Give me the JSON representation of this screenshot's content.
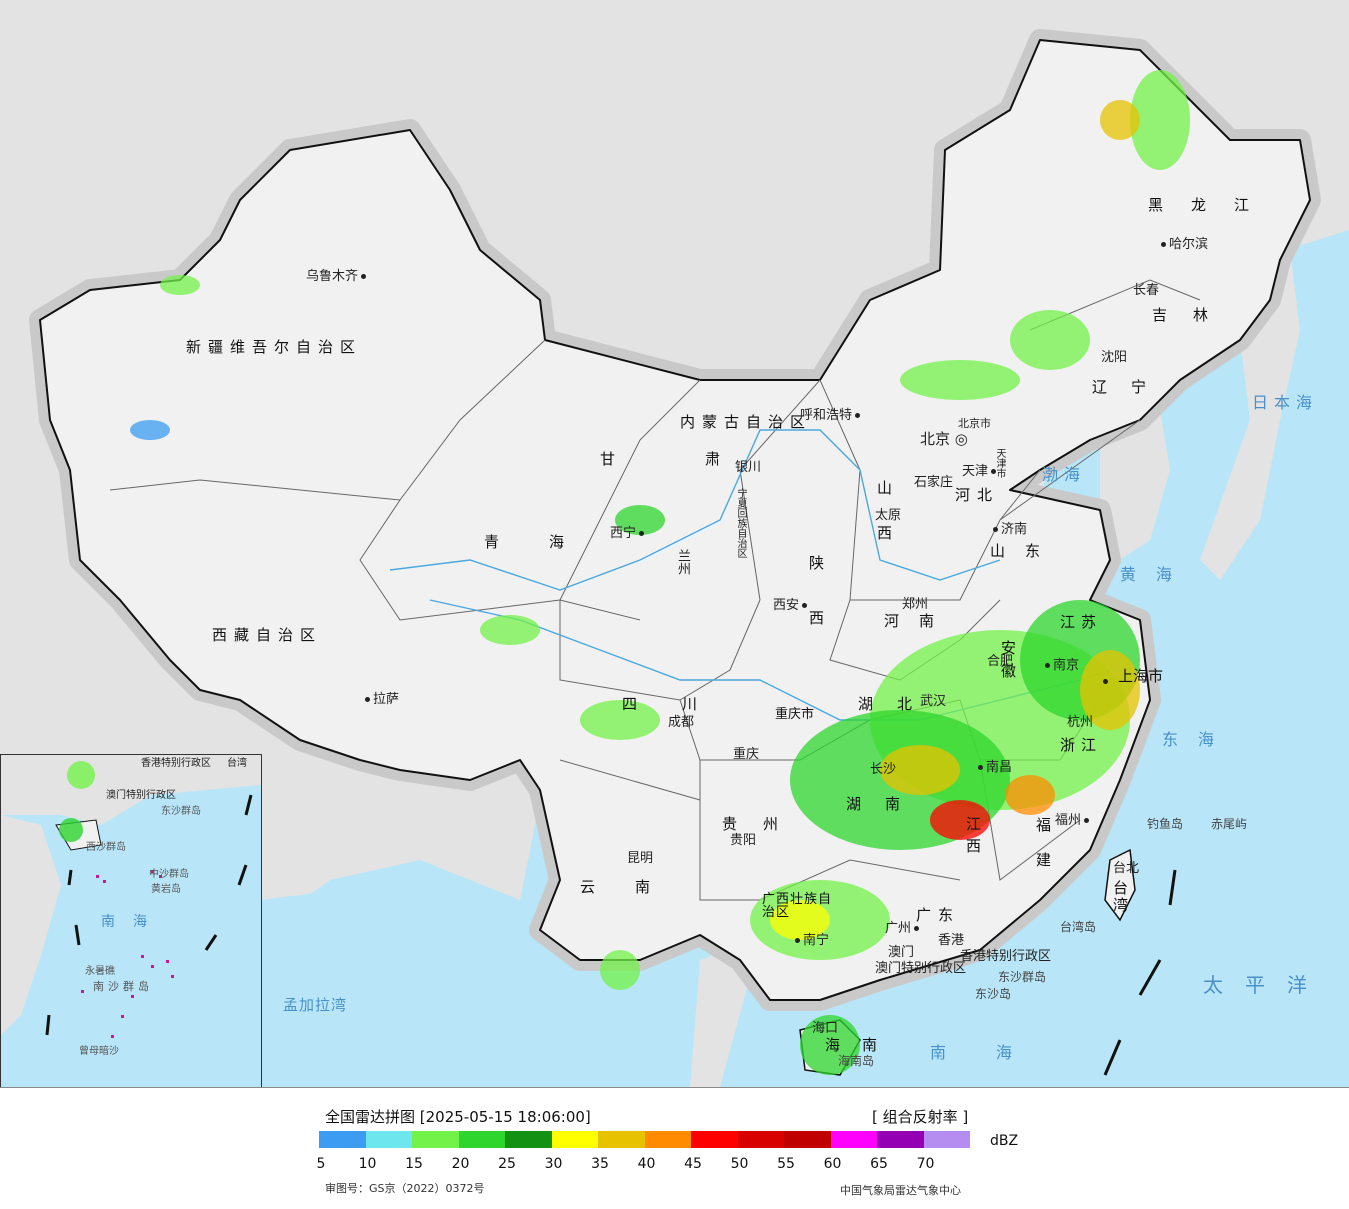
{
  "map": {
    "provinces": [
      "新疆维吾尔自治区",
      "西藏自治区",
      "青海",
      "甘肃",
      "内蒙古自治区",
      "黑龙江",
      "吉林",
      "辽宁",
      "河北",
      "山西",
      "陕西",
      "河南",
      "山东",
      "四川",
      "重庆市",
      "云南",
      "贵州",
      "湖南",
      "湖北",
      "江西",
      "安徽",
      "江苏",
      "浙江",
      "福建",
      "广东",
      "广西壮族自治区",
      "海南",
      "台湾",
      "宁夏回族自治区",
      "北京市",
      "天津市",
      "上海市",
      "香港特别行政区",
      "澳门特别行政区"
    ],
    "cities": [
      "乌鲁木齐",
      "拉萨",
      "西宁",
      "兰州",
      "银川",
      "呼和浩特",
      "北京",
      "天津",
      "石家庄",
      "太原",
      "济南",
      "郑州",
      "西安",
      "成都",
      "重庆",
      "昆明",
      "贵阳",
      "长沙",
      "武汉",
      "南昌",
      "合肥",
      "南京",
      "上海",
      "杭州",
      "福州",
      "广州",
      "南宁",
      "海口",
      "哈尔滨",
      "长春",
      "沈阳",
      "台北",
      "香港",
      "澳门"
    ],
    "seas": [
      "日本海",
      "渤海",
      "黄海",
      "东海",
      "太平洋",
      "南海",
      "孟加拉湾"
    ],
    "islands": [
      "钓鱼岛",
      "赤尾屿",
      "台湾岛",
      "东沙群岛",
      "东沙岛",
      "海南岛"
    ],
    "inset_labels": [
      "南海",
      "西沙群岛",
      "中沙群岛",
      "南沙群岛",
      "黄岩岛",
      "曾母暗沙",
      "永暑礁",
      "香港特别行政区",
      "澳门特别行政区",
      "东沙群岛",
      "台湾"
    ]
  },
  "legend": {
    "title": "全国雷达拼图 [2025-05-15 18:06:00]",
    "product": "[ 组合反射率 ]",
    "unit": "dBZ",
    "ticks": [
      "5",
      "10",
      "15",
      "20",
      "25",
      "30",
      "35",
      "40",
      "45",
      "50",
      "55",
      "60",
      "65",
      "70"
    ],
    "colors": [
      "#3b9cf2",
      "#6ee6ee",
      "#73f24a",
      "#2dd52d",
      "#139113",
      "#ffff00",
      "#e6c200",
      "#ff8c00",
      "#ff0000",
      "#d90000",
      "#c00000",
      "#ff00ff",
      "#9400b4",
      "#b58cf0"
    ],
    "map_approval": "审图号：GS京（2022）0372号",
    "credit": "中国气象局雷达气象中心"
  }
}
